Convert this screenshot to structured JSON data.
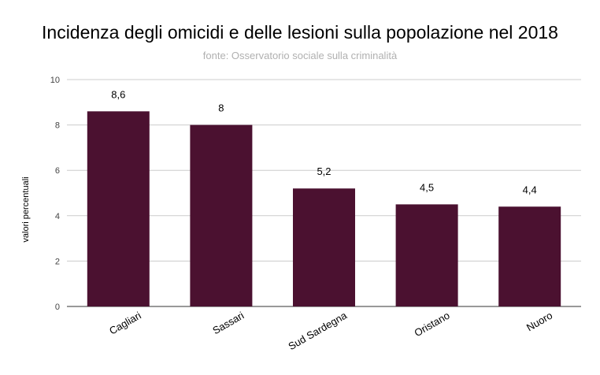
{
  "chart_data": {
    "type": "bar",
    "title": "Incidenza degli omicidi e delle lesioni sulla popolazione  nel 2018",
    "subtitle": "fonte: Osservatorio sociale sulla criminalità",
    "xlabel": "",
    "ylabel": "valori percentuali",
    "categories": [
      "Cagliari",
      "Sassari",
      "Sud Sardegna",
      "Oristano",
      "Nuoro"
    ],
    "values": [
      8.6,
      8,
      5.2,
      4.5,
      4.4
    ],
    "data_labels": [
      "8,6",
      "8",
      "5,2",
      "4,5",
      "4,4"
    ],
    "ylim": [
      0,
      10
    ],
    "yticks": [
      0,
      2,
      4,
      6,
      8,
      10
    ],
    "grid": true,
    "legend": "none",
    "bar_color": "#4b1130"
  }
}
